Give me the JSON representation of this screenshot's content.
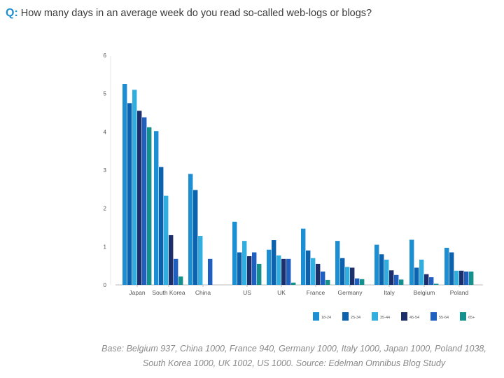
{
  "question": {
    "prefix": "Q:",
    "text": "How many days in an average week do you read so-called web-logs or blogs?"
  },
  "footnote": "Base: Belgium 937, China 1000, France 940, Germany 1000, Italy 1000, Japan 1000, Poland 1038, South Korea 1000, UK 1002, US 1000. Source: Edelman Omnibus Blog Study",
  "chart_data": {
    "type": "bar",
    "title": "How many days in an average week do you read so-called web-logs or blogs?",
    "xlabel": "",
    "ylabel": "",
    "ylim": [
      0,
      6
    ],
    "yticks": [
      0,
      1,
      2,
      3,
      4,
      5,
      6
    ],
    "grid": false,
    "legend_position": "bottom-right",
    "categories": [
      "Japan",
      "South Korea",
      "China",
      "US",
      "UK",
      "France",
      "Germany",
      "Italy",
      "Belgium",
      "Poland"
    ],
    "series": [
      {
        "name": "18-24",
        "color": "#1c8ed4",
        "values": [
          5.25,
          4.02,
          2.9,
          1.65,
          0.92,
          1.47,
          1.15,
          1.05,
          1.18,
          0.97
        ]
      },
      {
        "name": "25-34",
        "color": "#0d62ad",
        "values": [
          4.75,
          3.08,
          2.48,
          0.85,
          1.17,
          0.9,
          0.7,
          0.8,
          0.45,
          0.85
        ]
      },
      {
        "name": "35-44",
        "color": "#31aee0",
        "values": [
          5.1,
          2.33,
          1.28,
          1.15,
          0.77,
          0.7,
          0.47,
          0.66,
          0.66,
          0.37
        ]
      },
      {
        "name": "45-54",
        "color": "#1c2f6a",
        "values": [
          4.55,
          1.3,
          0.0,
          0.75,
          0.68,
          0.55,
          0.45,
          0.38,
          0.28,
          0.37
        ]
      },
      {
        "name": "55-64",
        "color": "#1f5fbf",
        "values": [
          4.38,
          0.68,
          0.68,
          0.85,
          0.68,
          0.35,
          0.17,
          0.26,
          0.2,
          0.35
        ]
      },
      {
        "name": "65+",
        "color": "#16908c",
        "values": [
          4.12,
          0.22,
          0.0,
          0.55,
          0.06,
          0.13,
          0.15,
          0.14,
          0.03,
          0.35
        ]
      }
    ]
  }
}
